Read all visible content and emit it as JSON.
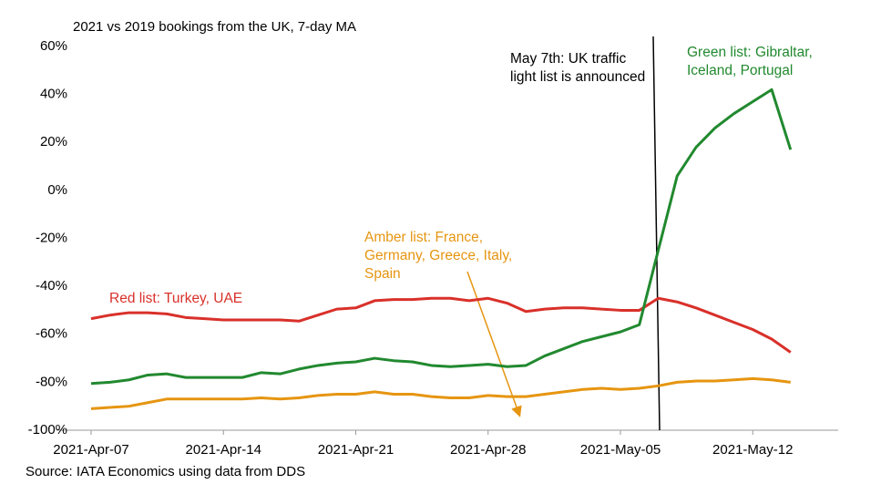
{
  "chart_data": {
    "type": "line",
    "title": "2021 vs 2019 bookings from the UK, 7-day MA",
    "source": "Source: IATA Economics using data from DDS",
    "annotation": "May 7th: UK traffic light list is announced",
    "categories": [
      "2021-Apr-07",
      null,
      null,
      null,
      null,
      null,
      null,
      "2021-Apr-14",
      null,
      null,
      null,
      null,
      null,
      null,
      "2021-Apr-21",
      null,
      null,
      null,
      null,
      null,
      null,
      "2021-Apr-28",
      null,
      null,
      null,
      null,
      null,
      null,
      "2021-May-05",
      null,
      null,
      null,
      null,
      null,
      null,
      "2021-May-12",
      null,
      null
    ],
    "ylim": [
      -100,
      60
    ],
    "yticks": [
      {
        "value": -100,
        "label": "-100%"
      },
      {
        "value": -80,
        "label": "-80%"
      },
      {
        "value": -60,
        "label": "-60%"
      },
      {
        "value": -40,
        "label": "-40%"
      },
      {
        "value": -20,
        "label": "-20%"
      },
      {
        "value": 0,
        "label": "0%"
      },
      {
        "value": 20,
        "label": "20%"
      },
      {
        "value": 40,
        "label": "40%"
      },
      {
        "value": 60,
        "label": "60%"
      }
    ],
    "grid": false,
    "series": [
      {
        "name": "Red list: Turkey, UAE",
        "color": "#d9302a",
        "values": [
          -53.5,
          -52,
          -51,
          -51,
          -51.5,
          -53,
          -53.5,
          -54,
          -54,
          -54,
          -54,
          -54.5,
          -52,
          -49.5,
          -49,
          -46,
          -45.5,
          -45.5,
          -45,
          -45,
          -46,
          -45,
          -47,
          -50.5,
          -49.5,
          -49,
          -49,
          -49.5,
          -50,
          -50,
          -45,
          -46.5,
          -49,
          -52,
          -55,
          -58,
          -62,
          -67.5
        ]
      },
      {
        "name": "Green list: Gibraltar, Iceland, Portugal",
        "color": "#21892f",
        "values": [
          -80.5,
          -80,
          -79,
          -77,
          -76.5,
          -78,
          -78,
          -78,
          -78,
          -76,
          -76.5,
          -74.5,
          -73,
          -72,
          -71.5,
          -70,
          -71,
          -71.5,
          -73,
          -73.5,
          -73,
          -72.5,
          -73.5,
          -73,
          -69,
          -66,
          -63,
          -61,
          -59,
          -56,
          -25,
          6,
          18,
          26,
          32,
          37,
          42,
          17
        ]
      },
      {
        "name": "Amber list: France, Germany, Greece, Italy, Spain",
        "color": "#e69510",
        "values": [
          -91,
          -90.5,
          -90,
          -88.5,
          -87,
          -87,
          -87,
          -87,
          -87,
          -86.5,
          -87,
          -86.5,
          -85.5,
          -85,
          -85,
          -84,
          -85,
          -85,
          -86,
          -86.5,
          -86.5,
          -85.5,
          -86,
          -86,
          -85,
          -84,
          -83,
          -82.5,
          -83,
          -82.5,
          -81.5,
          -80,
          -79.5,
          -79.5,
          -79,
          -78.5,
          -79,
          -80
        ]
      }
    ]
  }
}
